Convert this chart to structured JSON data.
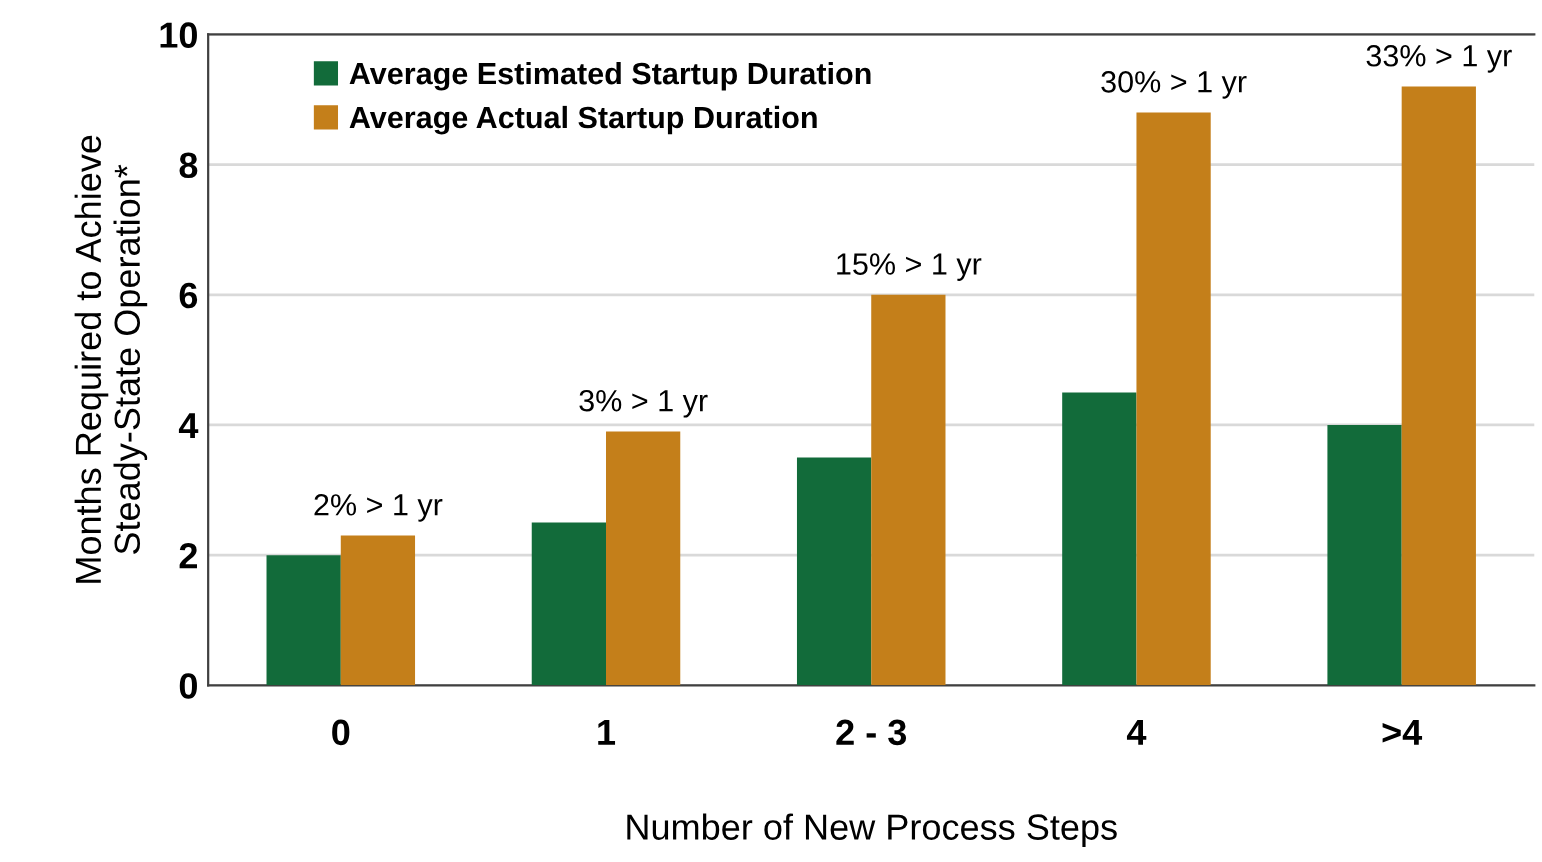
{
  "chart_data": {
    "type": "bar",
    "xlabel": "Number of New Process Steps",
    "ylabel": "Months Required to Achieve\nSteady-State Operation*",
    "categories": [
      "0",
      "1",
      "2 - 3",
      "4",
      ">4"
    ],
    "series": [
      {
        "name": "Average Estimated Startup Duration",
        "color": "#126b3a",
        "values": [
          2.0,
          2.5,
          3.5,
          4.5,
          4.0
        ]
      },
      {
        "name": "Average Actual Startup Duration",
        "color": "#c47f1a",
        "values": [
          2.3,
          3.9,
          6.0,
          8.8,
          9.2
        ]
      }
    ],
    "annotations": [
      {
        "text": "2% > 1 yr",
        "x": "0",
        "y": 2.3
      },
      {
        "text": "3% > 1 yr",
        "x": "1",
        "y": 3.9
      },
      {
        "text": "15% > 1 yr",
        "x": "2 - 3",
        "y": 6.0
      },
      {
        "text": "30% > 1 yr",
        "x": "4",
        "y": 8.8
      },
      {
        "text": "33% > 1 yr",
        "x": ">4",
        "y": 9.2
      }
    ],
    "ylim": [
      0,
      10
    ],
    "yticks": [
      0,
      2,
      4,
      6,
      8,
      10
    ],
    "grid": "y",
    "legend": "top left"
  }
}
